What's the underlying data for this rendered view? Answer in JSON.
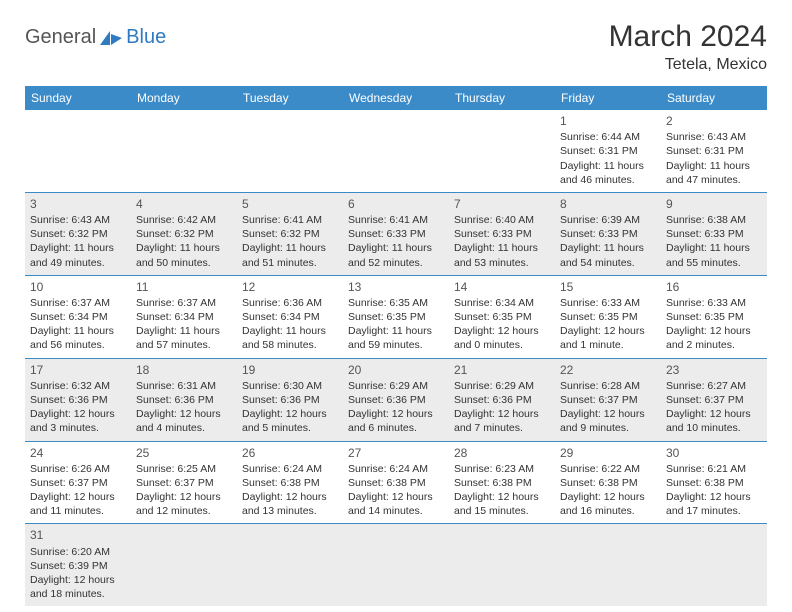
{
  "logo": {
    "main": "General",
    "sub": "Blue"
  },
  "title": "March 2024",
  "location": "Tetela, Mexico",
  "colors": {
    "header_bg": "#3b8bc9",
    "header_text": "#ffffff",
    "shaded_bg": "#ececec",
    "border": "#3b8bc9",
    "logo_gray": "#555555",
    "logo_blue": "#2f7ac0"
  },
  "day_headers": [
    "Sunday",
    "Monday",
    "Tuesday",
    "Wednesday",
    "Thursday",
    "Friday",
    "Saturday"
  ],
  "weeks": [
    [
      {
        "n": "",
        "sr": "",
        "ss": "",
        "d1": "",
        "d2": ""
      },
      {
        "n": "",
        "sr": "",
        "ss": "",
        "d1": "",
        "d2": ""
      },
      {
        "n": "",
        "sr": "",
        "ss": "",
        "d1": "",
        "d2": ""
      },
      {
        "n": "",
        "sr": "",
        "ss": "",
        "d1": "",
        "d2": ""
      },
      {
        "n": "",
        "sr": "",
        "ss": "",
        "d1": "",
        "d2": ""
      },
      {
        "n": "1",
        "sr": "Sunrise: 6:44 AM",
        "ss": "Sunset: 6:31 PM",
        "d1": "Daylight: 11 hours",
        "d2": "and 46 minutes."
      },
      {
        "n": "2",
        "sr": "Sunrise: 6:43 AM",
        "ss": "Sunset: 6:31 PM",
        "d1": "Daylight: 11 hours",
        "d2": "and 47 minutes."
      }
    ],
    [
      {
        "n": "3",
        "sr": "Sunrise: 6:43 AM",
        "ss": "Sunset: 6:32 PM",
        "d1": "Daylight: 11 hours",
        "d2": "and 49 minutes."
      },
      {
        "n": "4",
        "sr": "Sunrise: 6:42 AM",
        "ss": "Sunset: 6:32 PM",
        "d1": "Daylight: 11 hours",
        "d2": "and 50 minutes."
      },
      {
        "n": "5",
        "sr": "Sunrise: 6:41 AM",
        "ss": "Sunset: 6:32 PM",
        "d1": "Daylight: 11 hours",
        "d2": "and 51 minutes."
      },
      {
        "n": "6",
        "sr": "Sunrise: 6:41 AM",
        "ss": "Sunset: 6:33 PM",
        "d1": "Daylight: 11 hours",
        "d2": "and 52 minutes."
      },
      {
        "n": "7",
        "sr": "Sunrise: 6:40 AM",
        "ss": "Sunset: 6:33 PM",
        "d1": "Daylight: 11 hours",
        "d2": "and 53 minutes."
      },
      {
        "n": "8",
        "sr": "Sunrise: 6:39 AM",
        "ss": "Sunset: 6:33 PM",
        "d1": "Daylight: 11 hours",
        "d2": "and 54 minutes."
      },
      {
        "n": "9",
        "sr": "Sunrise: 6:38 AM",
        "ss": "Sunset: 6:33 PM",
        "d1": "Daylight: 11 hours",
        "d2": "and 55 minutes."
      }
    ],
    [
      {
        "n": "10",
        "sr": "Sunrise: 6:37 AM",
        "ss": "Sunset: 6:34 PM",
        "d1": "Daylight: 11 hours",
        "d2": "and 56 minutes."
      },
      {
        "n": "11",
        "sr": "Sunrise: 6:37 AM",
        "ss": "Sunset: 6:34 PM",
        "d1": "Daylight: 11 hours",
        "d2": "and 57 minutes."
      },
      {
        "n": "12",
        "sr": "Sunrise: 6:36 AM",
        "ss": "Sunset: 6:34 PM",
        "d1": "Daylight: 11 hours",
        "d2": "and 58 minutes."
      },
      {
        "n": "13",
        "sr": "Sunrise: 6:35 AM",
        "ss": "Sunset: 6:35 PM",
        "d1": "Daylight: 11 hours",
        "d2": "and 59 minutes."
      },
      {
        "n": "14",
        "sr": "Sunrise: 6:34 AM",
        "ss": "Sunset: 6:35 PM",
        "d1": "Daylight: 12 hours",
        "d2": "and 0 minutes."
      },
      {
        "n": "15",
        "sr": "Sunrise: 6:33 AM",
        "ss": "Sunset: 6:35 PM",
        "d1": "Daylight: 12 hours",
        "d2": "and 1 minute."
      },
      {
        "n": "16",
        "sr": "Sunrise: 6:33 AM",
        "ss": "Sunset: 6:35 PM",
        "d1": "Daylight: 12 hours",
        "d2": "and 2 minutes."
      }
    ],
    [
      {
        "n": "17",
        "sr": "Sunrise: 6:32 AM",
        "ss": "Sunset: 6:36 PM",
        "d1": "Daylight: 12 hours",
        "d2": "and 3 minutes."
      },
      {
        "n": "18",
        "sr": "Sunrise: 6:31 AM",
        "ss": "Sunset: 6:36 PM",
        "d1": "Daylight: 12 hours",
        "d2": "and 4 minutes."
      },
      {
        "n": "19",
        "sr": "Sunrise: 6:30 AM",
        "ss": "Sunset: 6:36 PM",
        "d1": "Daylight: 12 hours",
        "d2": "and 5 minutes."
      },
      {
        "n": "20",
        "sr": "Sunrise: 6:29 AM",
        "ss": "Sunset: 6:36 PM",
        "d1": "Daylight: 12 hours",
        "d2": "and 6 minutes."
      },
      {
        "n": "21",
        "sr": "Sunrise: 6:29 AM",
        "ss": "Sunset: 6:36 PM",
        "d1": "Daylight: 12 hours",
        "d2": "and 7 minutes."
      },
      {
        "n": "22",
        "sr": "Sunrise: 6:28 AM",
        "ss": "Sunset: 6:37 PM",
        "d1": "Daylight: 12 hours",
        "d2": "and 9 minutes."
      },
      {
        "n": "23",
        "sr": "Sunrise: 6:27 AM",
        "ss": "Sunset: 6:37 PM",
        "d1": "Daylight: 12 hours",
        "d2": "and 10 minutes."
      }
    ],
    [
      {
        "n": "24",
        "sr": "Sunrise: 6:26 AM",
        "ss": "Sunset: 6:37 PM",
        "d1": "Daylight: 12 hours",
        "d2": "and 11 minutes."
      },
      {
        "n": "25",
        "sr": "Sunrise: 6:25 AM",
        "ss": "Sunset: 6:37 PM",
        "d1": "Daylight: 12 hours",
        "d2": "and 12 minutes."
      },
      {
        "n": "26",
        "sr": "Sunrise: 6:24 AM",
        "ss": "Sunset: 6:38 PM",
        "d1": "Daylight: 12 hours",
        "d2": "and 13 minutes."
      },
      {
        "n": "27",
        "sr": "Sunrise: 6:24 AM",
        "ss": "Sunset: 6:38 PM",
        "d1": "Daylight: 12 hours",
        "d2": "and 14 minutes."
      },
      {
        "n": "28",
        "sr": "Sunrise: 6:23 AM",
        "ss": "Sunset: 6:38 PM",
        "d1": "Daylight: 12 hours",
        "d2": "and 15 minutes."
      },
      {
        "n": "29",
        "sr": "Sunrise: 6:22 AM",
        "ss": "Sunset: 6:38 PM",
        "d1": "Daylight: 12 hours",
        "d2": "and 16 minutes."
      },
      {
        "n": "30",
        "sr": "Sunrise: 6:21 AM",
        "ss": "Sunset: 6:38 PM",
        "d1": "Daylight: 12 hours",
        "d2": "and 17 minutes."
      }
    ],
    [
      {
        "n": "31",
        "sr": "Sunrise: 6:20 AM",
        "ss": "Sunset: 6:39 PM",
        "d1": "Daylight: 12 hours",
        "d2": "and 18 minutes."
      },
      {
        "n": "",
        "sr": "",
        "ss": "",
        "d1": "",
        "d2": ""
      },
      {
        "n": "",
        "sr": "",
        "ss": "",
        "d1": "",
        "d2": ""
      },
      {
        "n": "",
        "sr": "",
        "ss": "",
        "d1": "",
        "d2": ""
      },
      {
        "n": "",
        "sr": "",
        "ss": "",
        "d1": "",
        "d2": ""
      },
      {
        "n": "",
        "sr": "",
        "ss": "",
        "d1": "",
        "d2": ""
      },
      {
        "n": "",
        "sr": "",
        "ss": "",
        "d1": "",
        "d2": ""
      }
    ]
  ]
}
